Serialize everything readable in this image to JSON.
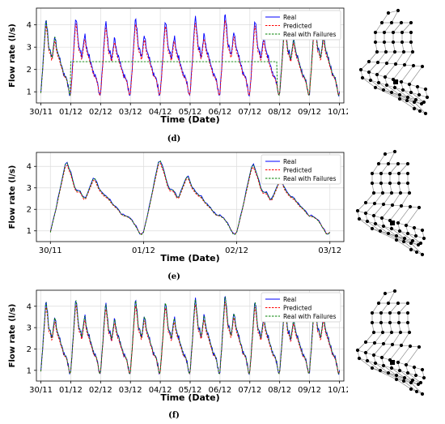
{
  "panels": [
    {
      "caption": "(d)",
      "chart_data": {
        "type": "line",
        "xlabel": "Time (Date)",
        "ylabel": "Flow rate (l/s)",
        "xticks": [
          "30/11",
          "01/12",
          "02/12",
          "03/12",
          "04/12",
          "05/12",
          "06/12",
          "07/12",
          "08/12",
          "09/12",
          "10/12"
        ],
        "yticks": [
          1,
          2,
          3,
          4
        ],
        "ylim": [
          0.5,
          4.75
        ],
        "grid": true,
        "legend_position": "top-right",
        "series": [
          {
            "name": "Real",
            "color": "#0000ff",
            "style": "solid",
            "pattern": "daily",
            "days": [
              0,
              10
            ],
            "peak_scale": 1.0,
            "noise": 0.12
          },
          {
            "name": "Predicted",
            "color": "#ff0000",
            "style": "dashed",
            "pattern": "daily",
            "days": [
              0,
              10
            ],
            "peak_scale": 0.93,
            "noise": 0.0
          },
          {
            "name": "Real with Failures",
            "color": "#008000",
            "style": "dashed",
            "pattern": "daily_with_failure",
            "days": [
              0,
              10
            ],
            "failure_range": [
              1.0,
              7.9
            ],
            "failure_value": 2.35
          }
        ]
      }
    },
    {
      "caption": "(e)",
      "chart_data": {
        "type": "line",
        "xlabel": "Time (Date)",
        "ylabel": "Flow rate (l/s)",
        "xticks": [
          "30/11",
          "01/12",
          "02/12",
          "03/12"
        ],
        "yticks": [
          1,
          2,
          3,
          4
        ],
        "ylim": [
          0.5,
          4.65
        ],
        "grid": true,
        "legend_position": "top-right",
        "series": [
          {
            "name": "Real",
            "color": "#0000ff",
            "style": "solid",
            "pattern": "daily",
            "days": [
              0,
              3
            ],
            "peak_scale": 1.0,
            "noise": 0.05
          },
          {
            "name": "Predicted",
            "color": "#ff0000",
            "style": "dashed",
            "pattern": "daily",
            "days": [
              0,
              3
            ],
            "peak_scale": 0.96,
            "noise": 0.0
          },
          {
            "name": "Real with Failures",
            "color": "#008000",
            "style": "dashed",
            "pattern": "daily_shift",
            "days": [
              0,
              3
            ],
            "shift": -0.02
          }
        ]
      }
    },
    {
      "caption": "(f)",
      "chart_data": {
        "type": "line",
        "xlabel": "Time (Date)",
        "ylabel": "Flow rate (l/s)",
        "xticks": [
          "30/11",
          "01/12",
          "02/12",
          "03/12",
          "04/12",
          "05/12",
          "06/12",
          "07/12",
          "08/12",
          "09/12",
          "10/12"
        ],
        "yticks": [
          1,
          2,
          3,
          4
        ],
        "ylim": [
          0.5,
          4.75
        ],
        "grid": true,
        "legend_position": "top-right",
        "series": [
          {
            "name": "Real",
            "color": "#0000ff",
            "style": "solid",
            "pattern": "daily",
            "days": [
              0,
              10
            ],
            "peak_scale": 1.0,
            "noise": 0.12
          },
          {
            "name": "Predicted",
            "color": "#ff0000",
            "style": "dashed",
            "pattern": "daily",
            "days": [
              0,
              10
            ],
            "peak_scale": 0.93,
            "noise": 0.0
          },
          {
            "name": "Real with Failures",
            "color": "#008000",
            "style": "dashed",
            "pattern": "daily_shift",
            "days": [
              0,
              10
            ],
            "shift": 0.0
          }
        ]
      }
    }
  ]
}
